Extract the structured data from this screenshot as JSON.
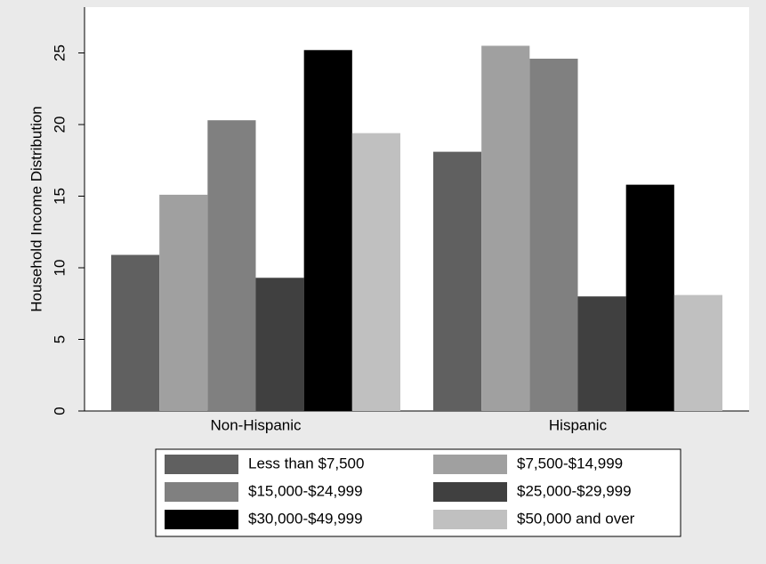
{
  "chart_data": {
    "type": "bar",
    "ylabel": "Household Income Distribution",
    "categories": [
      "Non-Hispanic",
      "Hispanic"
    ],
    "series": [
      {
        "name": "Less than $7,500",
        "color": "#606060",
        "values": [
          10.9,
          18.1
        ]
      },
      {
        "name": "$7,500-$14,999",
        "color": "#a0a0a0",
        "values": [
          15.1,
          25.5
        ]
      },
      {
        "name": "$15,000-$24,999",
        "color": "#808080",
        "values": [
          20.3,
          24.6
        ]
      },
      {
        "name": "$25,000-$29,999",
        "color": "#404040",
        "values": [
          9.3,
          8.0
        ]
      },
      {
        "name": "$30,000-$49,999",
        "color": "#000000",
        "values": [
          25.2,
          15.8
        ]
      },
      {
        "name": "$50,000 and over",
        "color": "#c0c0c0",
        "values": [
          19.4,
          8.1
        ]
      }
    ],
    "ylim": [
      0,
      28.2
    ],
    "yticks": [
      0,
      5,
      10,
      15,
      20,
      25
    ]
  }
}
